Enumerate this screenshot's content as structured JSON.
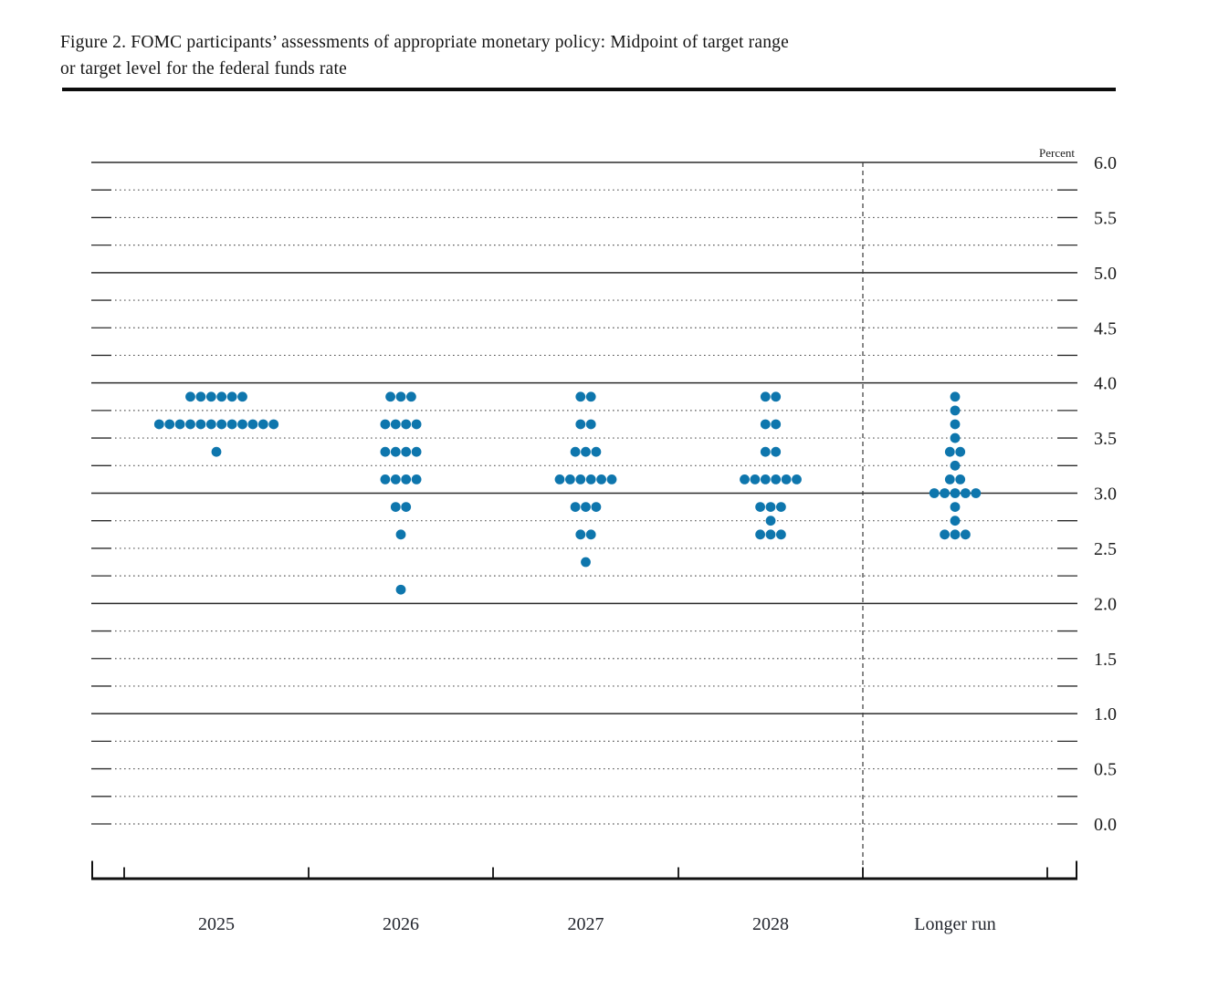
{
  "figure": {
    "title_lines": [
      "Figure 2. FOMC participants’ assessments of appropriate monetary policy: Midpoint of target range",
      "or target level for the federal funds rate"
    ]
  },
  "chart_data": {
    "type": "scatter",
    "subtype": "fomc-dot-plot",
    "title": "FOMC participants’ assessments of appropriate monetary policy: Midpoint of target range or target level for the federal funds rate",
    "unit_label": "Percent",
    "ylim": [
      0.0,
      6.0
    ],
    "y_tick_labels": [
      "6.0",
      "5.5",
      "5.0",
      "4.5",
      "4.0",
      "3.5",
      "3.0",
      "2.5",
      "2.0",
      "1.5",
      "1.0",
      "0.5",
      "0.0"
    ],
    "y_gridline_step": 0.25,
    "solid_gridline_levels": [
      6.0,
      5.0,
      4.0,
      3.0,
      2.0,
      1.0
    ],
    "grid": "horizontal, dotted minor lines every 0.25, solid at whole percents (0.0 dotted)",
    "legend": "none",
    "categories": [
      "2025",
      "2026",
      "2027",
      "2028",
      "Longer run"
    ],
    "separator": "dashed vertical line between 2028 and Longer run",
    "distributions": [
      {
        "category": "2025",
        "dots": [
          {
            "rate": 3.875,
            "count": 6
          },
          {
            "rate": 3.625,
            "count": 12
          },
          {
            "rate": 3.375,
            "count": 1
          }
        ]
      },
      {
        "category": "2026",
        "dots": [
          {
            "rate": 3.875,
            "count": 3
          },
          {
            "rate": 3.625,
            "count": 4
          },
          {
            "rate": 3.375,
            "count": 4
          },
          {
            "rate": 3.125,
            "count": 4
          },
          {
            "rate": 2.875,
            "count": 2
          },
          {
            "rate": 2.625,
            "count": 1
          },
          {
            "rate": 2.125,
            "count": 1
          }
        ]
      },
      {
        "category": "2027",
        "dots": [
          {
            "rate": 3.875,
            "count": 2
          },
          {
            "rate": 3.625,
            "count": 2
          },
          {
            "rate": 3.375,
            "count": 3
          },
          {
            "rate": 3.125,
            "count": 6
          },
          {
            "rate": 2.875,
            "count": 3
          },
          {
            "rate": 2.625,
            "count": 2
          },
          {
            "rate": 2.375,
            "count": 1
          }
        ]
      },
      {
        "category": "2028",
        "dots": [
          {
            "rate": 3.875,
            "count": 2
          },
          {
            "rate": 3.625,
            "count": 2
          },
          {
            "rate": 3.375,
            "count": 2
          },
          {
            "rate": 3.125,
            "count": 6
          },
          {
            "rate": 2.875,
            "count": 3
          },
          {
            "rate": 2.75,
            "count": 1
          },
          {
            "rate": 2.625,
            "count": 3
          }
        ]
      },
      {
        "category": "Longer run",
        "dots": [
          {
            "rate": 3.875,
            "count": 1
          },
          {
            "rate": 3.75,
            "count": 1
          },
          {
            "rate": 3.625,
            "count": 1
          },
          {
            "rate": 3.5,
            "count": 1
          },
          {
            "rate": 3.375,
            "count": 2
          },
          {
            "rate": 3.25,
            "count": 1
          },
          {
            "rate": 3.125,
            "count": 2
          },
          {
            "rate": 3.0,
            "count": 5
          },
          {
            "rate": 2.875,
            "count": 1
          },
          {
            "rate": 2.75,
            "count": 1
          },
          {
            "rate": 2.625,
            "count": 3
          }
        ]
      }
    ],
    "colors": {
      "dot": "#0e76ad",
      "solid_grid": "#2b2b2b",
      "dotted_grid": "#5a5a5a",
      "axis": "#111111"
    }
  }
}
